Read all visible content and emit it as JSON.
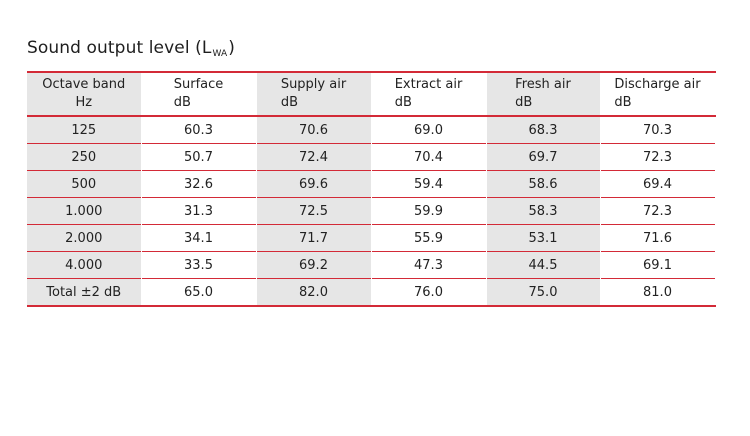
{
  "title": {
    "main": "Sound output level (L",
    "subscript": "WA",
    "close": ")"
  },
  "table": {
    "headers": [
      {
        "line1": "Octave band",
        "line2": "Hz"
      },
      {
        "line1": "Surface",
        "line2": "dB"
      },
      {
        "line1": "Supply air",
        "line2": "dB"
      },
      {
        "line1": "Extract air",
        "line2": "dB"
      },
      {
        "line1": "Fresh air",
        "line2": "dB"
      },
      {
        "line1": "Discharge air",
        "line2": "dB"
      }
    ],
    "rows": [
      {
        "label": "125",
        "values": [
          "60.3",
          "70.6",
          "69.0",
          "68.3",
          "70.3"
        ]
      },
      {
        "label": "250",
        "values": [
          "50.7",
          "72.4",
          "70.4",
          "69.7",
          "72.3"
        ]
      },
      {
        "label": "500",
        "values": [
          "32.6",
          "69.6",
          "59.4",
          "58.6",
          "69.4"
        ]
      },
      {
        "label": "1.000",
        "values": [
          "31.3",
          "72.5",
          "59.9",
          "58.3",
          "72.3"
        ]
      },
      {
        "label": "2.000",
        "values": [
          "34.1",
          "71.7",
          "55.9",
          "53.1",
          "71.6"
        ]
      },
      {
        "label": "4.000",
        "values": [
          "33.5",
          "69.2",
          "47.3",
          "44.5",
          "69.1"
        ]
      },
      {
        "label": "Total ±2 dB",
        "values": [
          "65.0",
          "82.0",
          "76.0",
          "75.0",
          "81.0"
        ]
      }
    ]
  },
  "colors": {
    "rule": "#d32a37",
    "shade": "#e6e6e6"
  }
}
